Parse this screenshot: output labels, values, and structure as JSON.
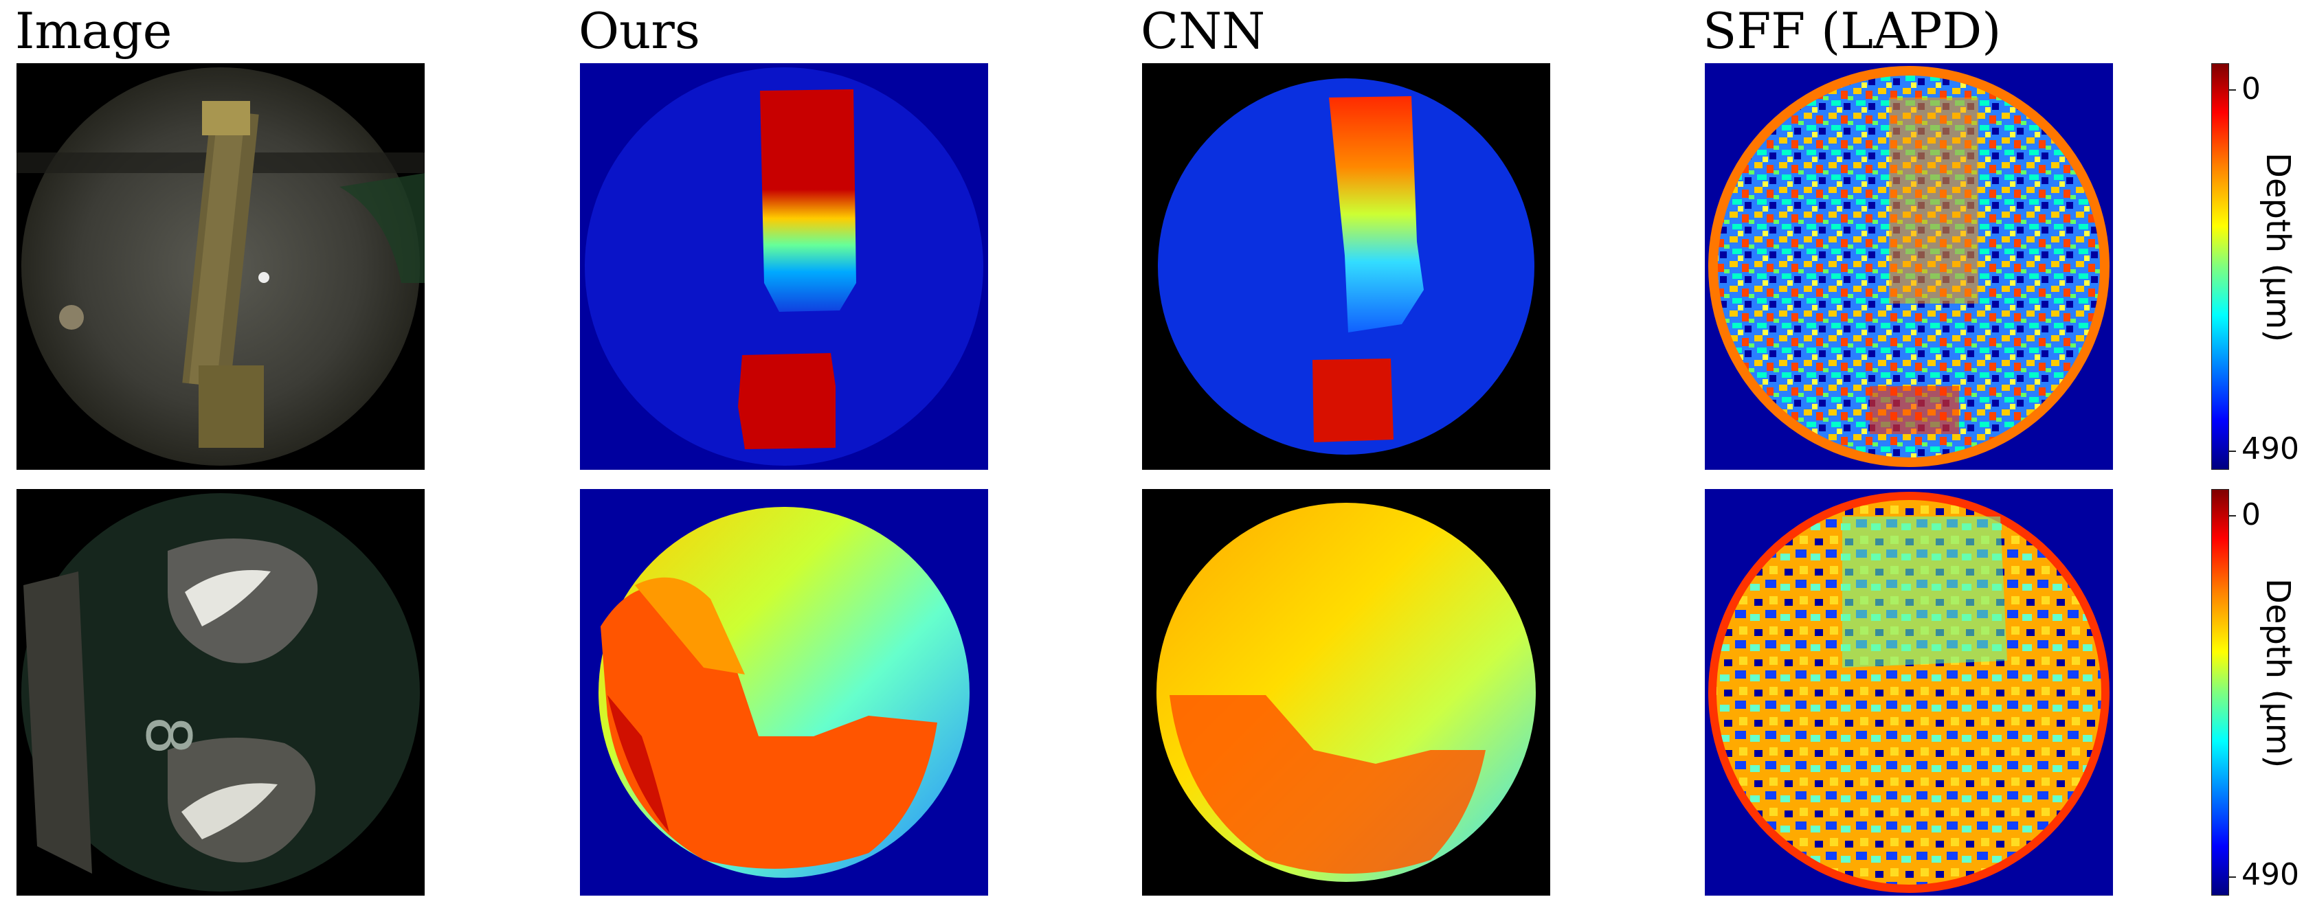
{
  "columns": [
    "Image",
    "Ours",
    "CNN",
    "SFF (LAPD)"
  ],
  "rows": [
    {
      "colorbar": {
        "top_label": "0",
        "bottom_label": "490",
        "axis_label": "Depth (μm)"
      }
    },
    {
      "colorbar": {
        "top_label": "0",
        "bottom_label": "490",
        "axis_label": "Depth (μm)"
      }
    }
  ],
  "colormap": "jet",
  "colors": {
    "background_blue": "#00009f",
    "deep_red": "#b30000",
    "black": "#000000"
  }
}
